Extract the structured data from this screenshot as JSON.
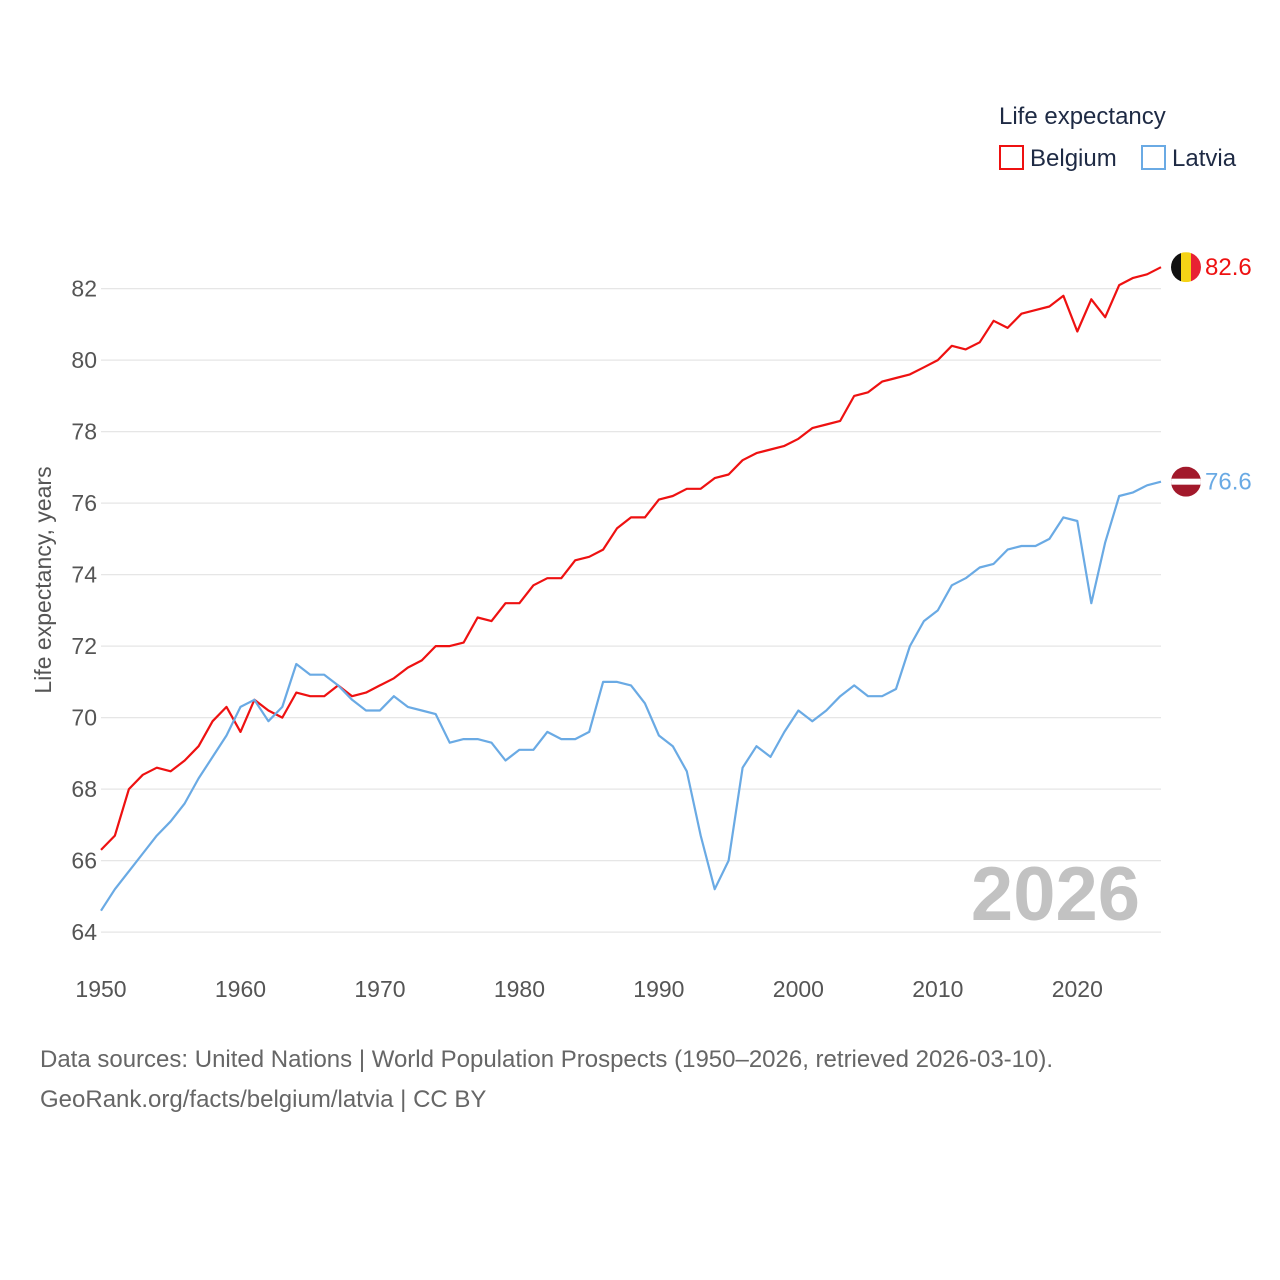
{
  "chart_data": {
    "type": "line",
    "legend_title": "Life expectancy",
    "ylabel": "Life expectancy, years",
    "xlabel": "",
    "xlim": [
      1950,
      2026
    ],
    "ylim": [
      63.5,
      83.5
    ],
    "yticks": [
      64,
      66,
      68,
      70,
      72,
      74,
      76,
      78,
      80,
      82
    ],
    "xticks": [
      1950,
      1960,
      1970,
      1980,
      1990,
      2000,
      2010,
      2020
    ],
    "current_year": "2026",
    "legend_position": "top-right",
    "series": [
      {
        "name": "Belgium",
        "color": "#ee1111",
        "end_label": "82.6",
        "flag": "belgium-flag",
        "x": [
          1950,
          1951,
          1952,
          1953,
          1954,
          1955,
          1956,
          1957,
          1958,
          1959,
          1960,
          1961,
          1962,
          1963,
          1964,
          1965,
          1966,
          1967,
          1968,
          1969,
          1970,
          1971,
          1972,
          1973,
          1974,
          1975,
          1976,
          1977,
          1978,
          1979,
          1980,
          1981,
          1982,
          1983,
          1984,
          1985,
          1986,
          1987,
          1988,
          1989,
          1990,
          1991,
          1992,
          1993,
          1994,
          1995,
          1996,
          1997,
          1998,
          1999,
          2000,
          2001,
          2002,
          2003,
          2004,
          2005,
          2006,
          2007,
          2008,
          2009,
          2010,
          2011,
          2012,
          2013,
          2014,
          2015,
          2016,
          2017,
          2018,
          2019,
          2020,
          2021,
          2022,
          2023,
          2024,
          2025,
          2026
        ],
        "values": [
          66.3,
          66.7,
          68.0,
          68.4,
          68.6,
          68.5,
          68.8,
          69.2,
          69.9,
          70.3,
          69.6,
          70.5,
          70.2,
          70.0,
          70.7,
          70.6,
          70.6,
          70.9,
          70.6,
          70.7,
          70.9,
          71.1,
          71.4,
          71.6,
          72.0,
          72.0,
          72.1,
          72.8,
          72.7,
          73.2,
          73.2,
          73.7,
          73.9,
          73.9,
          74.4,
          74.5,
          74.7,
          75.3,
          75.6,
          75.6,
          76.1,
          76.2,
          76.4,
          76.4,
          76.7,
          76.8,
          77.2,
          77.4,
          77.5,
          77.6,
          77.8,
          78.1,
          78.2,
          78.3,
          79.0,
          79.1,
          79.4,
          79.5,
          79.6,
          79.8,
          80.0,
          80.4,
          80.3,
          80.5,
          81.1,
          80.9,
          81.3,
          81.4,
          81.5,
          81.8,
          80.8,
          81.7,
          81.2,
          82.1,
          82.3,
          82.4,
          82.6
        ]
      },
      {
        "name": "Latvia",
        "color": "#6aaae4",
        "end_label": "76.6",
        "flag": "latvia-flag",
        "x": [
          1950,
          1951,
          1952,
          1953,
          1954,
          1955,
          1956,
          1957,
          1958,
          1959,
          1960,
          1961,
          1962,
          1963,
          1964,
          1965,
          1966,
          1967,
          1968,
          1969,
          1970,
          1971,
          1972,
          1973,
          1974,
          1975,
          1976,
          1977,
          1978,
          1979,
          1980,
          1981,
          1982,
          1983,
          1984,
          1985,
          1986,
          1987,
          1988,
          1989,
          1990,
          1991,
          1992,
          1993,
          1994,
          1995,
          1996,
          1997,
          1998,
          1999,
          2000,
          2001,
          2002,
          2003,
          2004,
          2005,
          2006,
          2007,
          2008,
          2009,
          2010,
          2011,
          2012,
          2013,
          2014,
          2015,
          2016,
          2017,
          2018,
          2019,
          2020,
          2021,
          2022,
          2023,
          2024,
          2025,
          2026
        ],
        "values": [
          64.6,
          65.2,
          65.7,
          66.2,
          66.7,
          67.1,
          67.6,
          68.3,
          68.9,
          69.5,
          70.3,
          70.5,
          69.9,
          70.3,
          71.5,
          71.2,
          71.2,
          70.9,
          70.5,
          70.2,
          70.2,
          70.6,
          70.3,
          70.2,
          70.1,
          69.3,
          69.4,
          69.4,
          69.3,
          68.8,
          69.1,
          69.1,
          69.6,
          69.4,
          69.4,
          69.6,
          71.0,
          71.0,
          70.9,
          70.4,
          69.5,
          69.2,
          68.5,
          66.7,
          65.2,
          66.0,
          68.6,
          69.2,
          68.9,
          69.6,
          70.2,
          69.9,
          70.2,
          70.6,
          70.9,
          70.6,
          70.6,
          70.8,
          72.0,
          72.7,
          73.0,
          73.7,
          73.9,
          74.2,
          74.3,
          74.7,
          74.8,
          74.8,
          75.0,
          75.6,
          75.5,
          73.2,
          74.9,
          76.2,
          76.3,
          76.5,
          76.6
        ]
      }
    ]
  },
  "footer": {
    "source_line": "Data sources: United Nations | World Population Prospects (1950–2026, retrieved 2026-03-10).",
    "credit_line": "GeoRank.org/facts/belgium/latvia | CC BY"
  }
}
